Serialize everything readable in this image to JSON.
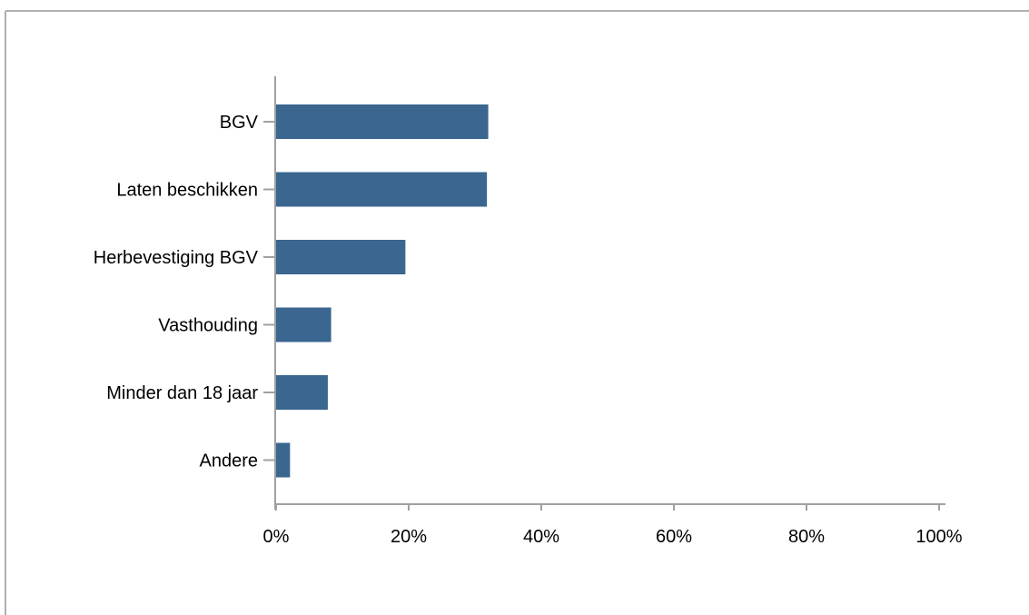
{
  "chart_data": {
    "type": "bar",
    "orientation": "horizontal",
    "categories": [
      "BGV",
      "Laten beschikken",
      "Herbevestiging BGV",
      "Vasthouding",
      "Minder dan 18 jaar",
      "Andere"
    ],
    "values": [
      32,
      31.8,
      19.5,
      8.3,
      7.8,
      2.1
    ],
    "value_unit": "%",
    "xlim": [
      0,
      100
    ],
    "x_ticks": [
      "0%",
      "20%",
      "40%",
      "60%",
      "80%",
      "100%"
    ],
    "x_tick_values": [
      0,
      20,
      40,
      60,
      80,
      100
    ],
    "grid": false,
    "legend": "none"
  },
  "colors": {
    "bar": "#3a6690",
    "axis": "#a0a0a0",
    "frame": "#b0b0b0",
    "text": "#000000"
  }
}
